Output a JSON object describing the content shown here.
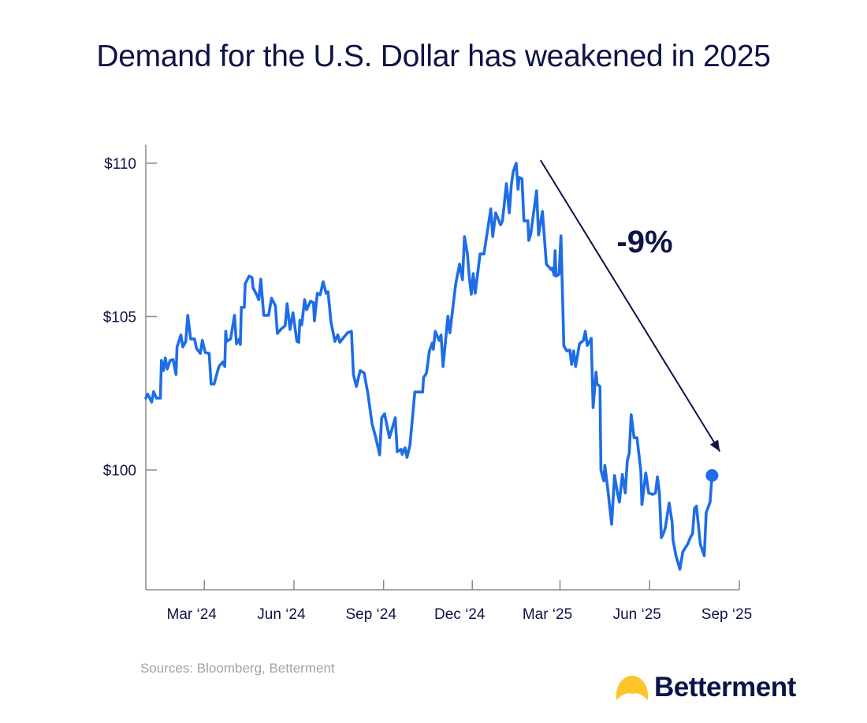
{
  "title": "Demand for the U.S. Dollar has weakened in 2025",
  "sources": "Sources: Bloomberg, Betterment",
  "logo": {
    "text": "Betterment",
    "icon": "sun-half-icon",
    "icon_color": "#fdc52c"
  },
  "colors": {
    "line": "#1f6de6",
    "text": "#0c1447",
    "axis": "#8a8a8a",
    "arrow": "#0c1447"
  },
  "chart_data": {
    "type": "line",
    "title": "Demand for the U.S. Dollar has weakened in 2025",
    "xlabel": "",
    "ylabel": "",
    "xlim": [
      "2024-01-01",
      "2025-09-01"
    ],
    "ylim": [
      96.1,
      110.6
    ],
    "grid": false,
    "y_ticks": [
      {
        "value": 110,
        "label": "$110"
      },
      {
        "value": 105,
        "label": "$105"
      },
      {
        "value": 100,
        "label": "$100"
      }
    ],
    "x_ticks": [
      {
        "date": "2024-03-01",
        "label": "Mar ‘24"
      },
      {
        "date": "2024-06-01",
        "label": "Jun ‘24"
      },
      {
        "date": "2024-09-01",
        "label": "Sep ‘24"
      },
      {
        "date": "2024-12-01",
        "label": "Dec ‘24"
      },
      {
        "date": "2025-03-01",
        "label": "Mar ‘25"
      },
      {
        "date": "2025-06-01",
        "label": "Jun ‘25"
      },
      {
        "date": "2025-09-01",
        "label": "Sep ‘25"
      }
    ],
    "annotation": {
      "label": "-9%",
      "from_date": "2025-02-09",
      "from_value": 110.1,
      "to_date": "2025-08-12",
      "to_value": 100.6
    },
    "end_marker": true,
    "series": [
      {
        "points": [
          [
            "2024-01-01",
            102.34
          ],
          [
            "2024-01-03",
            102.47
          ],
          [
            "2024-01-07",
            102.21
          ],
          [
            "2024-01-09",
            102.55
          ],
          [
            "2024-01-12",
            102.34
          ],
          [
            "2024-01-16",
            102.34
          ],
          [
            "2024-01-17",
            103.57
          ],
          [
            "2024-01-19",
            103.24
          ],
          [
            "2024-01-21",
            103.65
          ],
          [
            "2024-01-23",
            103.29
          ],
          [
            "2024-01-26",
            103.57
          ],
          [
            "2024-01-29",
            103.6
          ],
          [
            "2024-02-01",
            103.11
          ],
          [
            "2024-02-02",
            104.01
          ],
          [
            "2024-02-06",
            104.4
          ],
          [
            "2024-02-08",
            104.01
          ],
          [
            "2024-02-11",
            104.19
          ],
          [
            "2024-02-13",
            105.04
          ],
          [
            "2024-02-16",
            104.27
          ],
          [
            "2024-02-20",
            104.27
          ],
          [
            "2024-02-22",
            103.96
          ],
          [
            "2024-02-26",
            103.8
          ],
          [
            "2024-02-28",
            104.22
          ],
          [
            "2024-03-02",
            103.83
          ],
          [
            "2024-03-06",
            103.8
          ],
          [
            "2024-03-08",
            102.8
          ],
          [
            "2024-03-11",
            102.8
          ],
          [
            "2024-03-16",
            103.37
          ],
          [
            "2024-03-20",
            103.52
          ],
          [
            "2024-03-22",
            103.37
          ],
          [
            "2024-03-23",
            104.52
          ],
          [
            "2024-03-24",
            104.19
          ],
          [
            "2024-03-28",
            104.27
          ],
          [
            "2024-04-01",
            105.04
          ],
          [
            "2024-04-03",
            104.11
          ],
          [
            "2024-04-06",
            104.27
          ],
          [
            "2024-04-07",
            104.09
          ],
          [
            "2024-04-08",
            105.3
          ],
          [
            "2024-04-11",
            105.3
          ],
          [
            "2024-04-12",
            106.07
          ],
          [
            "2024-04-16",
            106.32
          ],
          [
            "2024-04-19",
            106.27
          ],
          [
            "2024-04-20",
            105.94
          ],
          [
            "2024-04-23",
            105.76
          ],
          [
            "2024-04-26",
            105.55
          ],
          [
            "2024-04-28",
            106.22
          ],
          [
            "2024-05-01",
            105.04
          ],
          [
            "2024-05-06",
            105.04
          ],
          [
            "2024-05-09",
            105.6
          ],
          [
            "2024-05-13",
            105.35
          ],
          [
            "2024-05-15",
            104.45
          ],
          [
            "2024-05-19",
            104.6
          ],
          [
            "2024-05-23",
            104.7
          ],
          [
            "2024-05-25",
            105.42
          ],
          [
            "2024-05-28",
            104.58
          ],
          [
            "2024-05-31",
            105.12
          ],
          [
            "2024-06-04",
            104.19
          ],
          [
            "2024-06-06",
            104.16
          ],
          [
            "2024-06-07",
            104.88
          ],
          [
            "2024-06-09",
            104.73
          ],
          [
            "2024-06-12",
            105.55
          ],
          [
            "2024-06-14",
            105.22
          ],
          [
            "2024-06-18",
            105.5
          ],
          [
            "2024-06-21",
            105.45
          ],
          [
            "2024-06-22",
            104.86
          ],
          [
            "2024-06-25",
            105.76
          ],
          [
            "2024-06-28",
            105.71
          ],
          [
            "2024-07-01",
            106.14
          ],
          [
            "2024-07-04",
            105.76
          ],
          [
            "2024-07-06",
            105.81
          ],
          [
            "2024-07-09",
            104.83
          ],
          [
            "2024-07-13",
            104.19
          ],
          [
            "2024-07-16",
            104.4
          ],
          [
            "2024-07-18",
            104.16
          ],
          [
            "2024-07-22",
            104.32
          ],
          [
            "2024-07-26",
            104.47
          ],
          [
            "2024-07-30",
            104.52
          ],
          [
            "2024-08-01",
            103.11
          ],
          [
            "2024-08-04",
            102.72
          ],
          [
            "2024-08-08",
            103.24
          ],
          [
            "2024-08-12",
            103.16
          ],
          [
            "2024-08-16",
            102.47
          ],
          [
            "2024-08-20",
            101.52
          ],
          [
            "2024-08-24",
            101.05
          ],
          [
            "2024-08-28",
            100.49
          ],
          [
            "2024-08-30",
            101.7
          ],
          [
            "2024-09-02",
            101.83
          ],
          [
            "2024-09-07",
            101.05
          ],
          [
            "2024-09-13",
            101.7
          ],
          [
            "2024-09-15",
            100.59
          ],
          [
            "2024-09-19",
            100.67
          ],
          [
            "2024-09-20",
            100.51
          ],
          [
            "2024-09-23",
            100.72
          ],
          [
            "2024-09-25",
            100.41
          ],
          [
            "2024-09-28",
            100.8
          ],
          [
            "2024-10-03",
            102.54
          ],
          [
            "2024-10-11",
            102.54
          ],
          [
            "2024-10-12",
            103.01
          ],
          [
            "2024-10-15",
            103.16
          ],
          [
            "2024-10-18",
            103.88
          ],
          [
            "2024-10-21",
            104.14
          ],
          [
            "2024-10-22",
            103.93
          ],
          [
            "2024-10-24",
            104.52
          ],
          [
            "2024-10-28",
            104.22
          ],
          [
            "2024-10-30",
            104.4
          ],
          [
            "2024-11-01",
            103.37
          ],
          [
            "2024-11-06",
            105.01
          ],
          [
            "2024-11-08",
            104.47
          ],
          [
            "2024-11-14",
            106.07
          ],
          [
            "2024-11-18",
            106.71
          ],
          [
            "2024-11-21",
            106.2
          ],
          [
            "2024-11-23",
            107.61
          ],
          [
            "2024-11-26",
            107.04
          ],
          [
            "2024-11-28",
            106.27
          ],
          [
            "2024-11-30",
            105.73
          ],
          [
            "2024-12-02",
            106.4
          ],
          [
            "2024-12-04",
            105.76
          ],
          [
            "2024-12-09",
            107.04
          ],
          [
            "2024-12-13",
            107.04
          ],
          [
            "2024-12-20",
            108.51
          ],
          [
            "2024-12-22",
            107.61
          ],
          [
            "2024-12-25",
            108.38
          ],
          [
            "2024-12-30",
            107.99
          ],
          [
            "2025-01-01",
            108.12
          ],
          [
            "2025-01-05",
            109.33
          ],
          [
            "2025-01-08",
            108.38
          ],
          [
            "2025-01-10",
            109.28
          ],
          [
            "2025-01-12",
            109.72
          ],
          [
            "2025-01-15",
            110.0
          ],
          [
            "2025-01-17",
            109.15
          ],
          [
            "2025-01-18",
            109.54
          ],
          [
            "2025-01-21",
            109.49
          ],
          [
            "2025-01-23",
            108.12
          ],
          [
            "2025-01-27",
            108.12
          ],
          [
            "2025-01-28",
            107.48
          ],
          [
            "2025-01-30",
            107.69
          ],
          [
            "2025-02-05",
            109.1
          ],
          [
            "2025-02-07",
            107.66
          ],
          [
            "2025-02-11",
            108.43
          ],
          [
            "2025-02-15",
            106.71
          ],
          [
            "2025-02-20",
            106.53
          ],
          [
            "2025-02-21",
            106.58
          ],
          [
            "2025-02-23",
            106.35
          ],
          [
            "2025-02-24",
            107.15
          ],
          [
            "2025-02-25",
            106.32
          ],
          [
            "2025-02-28",
            106.38
          ],
          [
            "2025-03-02",
            107.63
          ],
          [
            "2025-03-05",
            104.04
          ],
          [
            "2025-03-08",
            103.88
          ],
          [
            "2025-03-11",
            103.91
          ],
          [
            "2025-03-13",
            103.44
          ],
          [
            "2025-03-15",
            103.88
          ],
          [
            "2025-03-17",
            103.37
          ],
          [
            "2025-03-21",
            104.11
          ],
          [
            "2025-03-25",
            104.22
          ],
          [
            "2025-03-27",
            104.52
          ],
          [
            "2025-03-29",
            104.06
          ],
          [
            "2025-04-02",
            104.29
          ],
          [
            "2025-04-04",
            102.03
          ],
          [
            "2025-04-07",
            103.19
          ],
          [
            "2025-04-08",
            102.8
          ],
          [
            "2025-04-11",
            102.72
          ],
          [
            "2025-04-12",
            100.0
          ],
          [
            "2025-04-15",
            99.64
          ],
          [
            "2025-04-16",
            100.15
          ],
          [
            "2025-04-19",
            99.38
          ],
          [
            "2025-04-23",
            98.23
          ],
          [
            "2025-04-26",
            99.82
          ],
          [
            "2025-04-29",
            99.25
          ],
          [
            "2025-05-01",
            98.95
          ],
          [
            "2025-05-04",
            99.85
          ],
          [
            "2025-05-07",
            99.25
          ],
          [
            "2025-05-09",
            100.28
          ],
          [
            "2025-05-11",
            100.54
          ],
          [
            "2025-05-13",
            101.8
          ],
          [
            "2025-05-16",
            101.05
          ],
          [
            "2025-05-19",
            101.05
          ],
          [
            "2025-05-23",
            99.95
          ],
          [
            "2025-05-24",
            98.87
          ],
          [
            "2025-05-28",
            99.9
          ],
          [
            "2025-05-31",
            99.25
          ],
          [
            "2025-06-04",
            99.2
          ],
          [
            "2025-06-07",
            99.25
          ],
          [
            "2025-06-09",
            99.77
          ],
          [
            "2025-06-11",
            99.25
          ],
          [
            "2025-06-13",
            97.79
          ],
          [
            "2025-06-15",
            97.92
          ],
          [
            "2025-06-17",
            98.1
          ],
          [
            "2025-06-21",
            98.92
          ],
          [
            "2025-06-24",
            98.3
          ],
          [
            "2025-06-25",
            97.71
          ],
          [
            "2025-06-28",
            97.2
          ],
          [
            "2025-07-02",
            96.76
          ],
          [
            "2025-07-05",
            97.33
          ],
          [
            "2025-07-10",
            97.58
          ],
          [
            "2025-07-13",
            97.81
          ],
          [
            "2025-07-15",
            97.92
          ],
          [
            "2025-07-17",
            98.74
          ],
          [
            "2025-07-19",
            98.82
          ],
          [
            "2025-07-23",
            97.58
          ],
          [
            "2025-07-27",
            97.2
          ],
          [
            "2025-07-29",
            98.61
          ],
          [
            "2025-08-02",
            98.95
          ],
          [
            "2025-08-04",
            99.82
          ]
        ]
      }
    ]
  }
}
